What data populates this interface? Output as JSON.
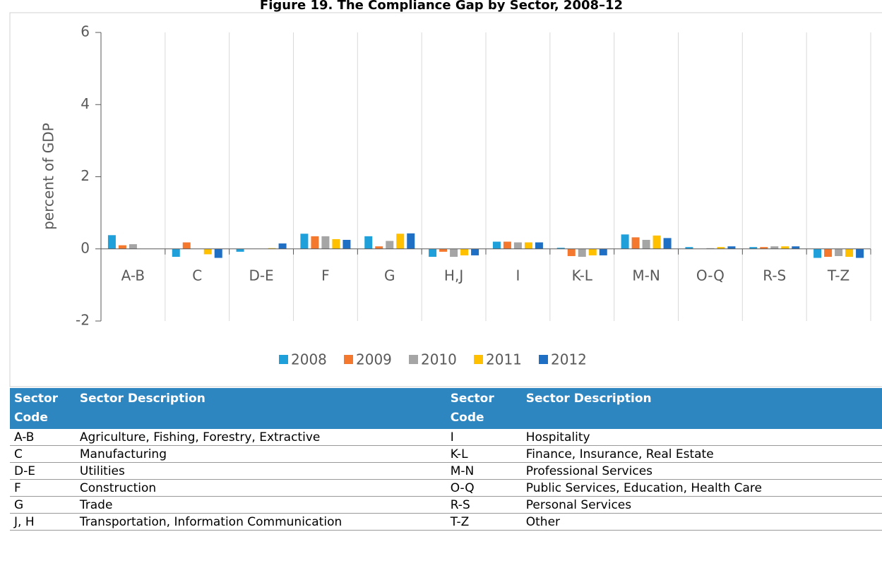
{
  "chart_data": {
    "type": "bar",
    "title": "Figure 19. The Compliance Gap by Sector, 2008–12",
    "ylabel": "percent of GDP",
    "categories": [
      "A-B",
      "C",
      "D-E",
      "F",
      "G",
      "H,J",
      "I",
      "K-L",
      "M-N",
      "O-Q",
      "R-S",
      "T-Z"
    ],
    "series": [
      {
        "name": "2008",
        "color": "#1fa0db",
        "values": [
          0.38,
          -0.22,
          -0.08,
          0.42,
          0.35,
          -0.22,
          0.2,
          0.03,
          0.4,
          0.05,
          0.05,
          -0.25
        ]
      },
      {
        "name": "2009",
        "color": "#f4782e",
        "values": [
          0.1,
          0.18,
          0,
          0.35,
          0.07,
          -0.08,
          0.2,
          -0.2,
          0.32,
          0,
          0.05,
          -0.22
        ]
      },
      {
        "name": "2010",
        "color": "#a5a5a5",
        "values": [
          0.13,
          0,
          0,
          0.35,
          0.22,
          -0.22,
          0.18,
          -0.22,
          0.25,
          0.02,
          0.07,
          -0.2
        ]
      },
      {
        "name": "2011",
        "color": "#ffc000",
        "values": [
          0,
          -0.15,
          0.02,
          0.27,
          0.42,
          -0.18,
          0.18,
          -0.18,
          0.37,
          0.05,
          0.07,
          -0.22
        ]
      },
      {
        "name": "2012",
        "color": "#1f6fc5",
        "values": [
          0,
          -0.25,
          0.15,
          0.25,
          0.43,
          -0.18,
          0.18,
          -0.18,
          0.3,
          0.07,
          0.07,
          -0.25
        ]
      }
    ],
    "ylim": [
      -2,
      6
    ],
    "yticks": [
      -2,
      0,
      2,
      4,
      6
    ],
    "legend": "bottom"
  },
  "table": {
    "header": [
      "Sector Code",
      "Sector Description",
      "Sector Code",
      "Sector Description"
    ],
    "rows": [
      [
        "A-B",
        "Agriculture, Fishing, Forestry, Extractive",
        "I",
        "Hospitality"
      ],
      [
        "C",
        "Manufacturing",
        "K-L",
        "Finance, Insurance, Real Estate"
      ],
      [
        "D-E",
        "Utilities",
        "M-N",
        "Professional Services"
      ],
      [
        "F",
        "Construction",
        "O-Q",
        "Public Services, Education, Health Care"
      ],
      [
        "G",
        "Trade",
        "R-S",
        "Personal Services"
      ],
      [
        "J, H",
        "Transportation, Information Communication",
        "T-Z",
        "Other"
      ]
    ]
  }
}
